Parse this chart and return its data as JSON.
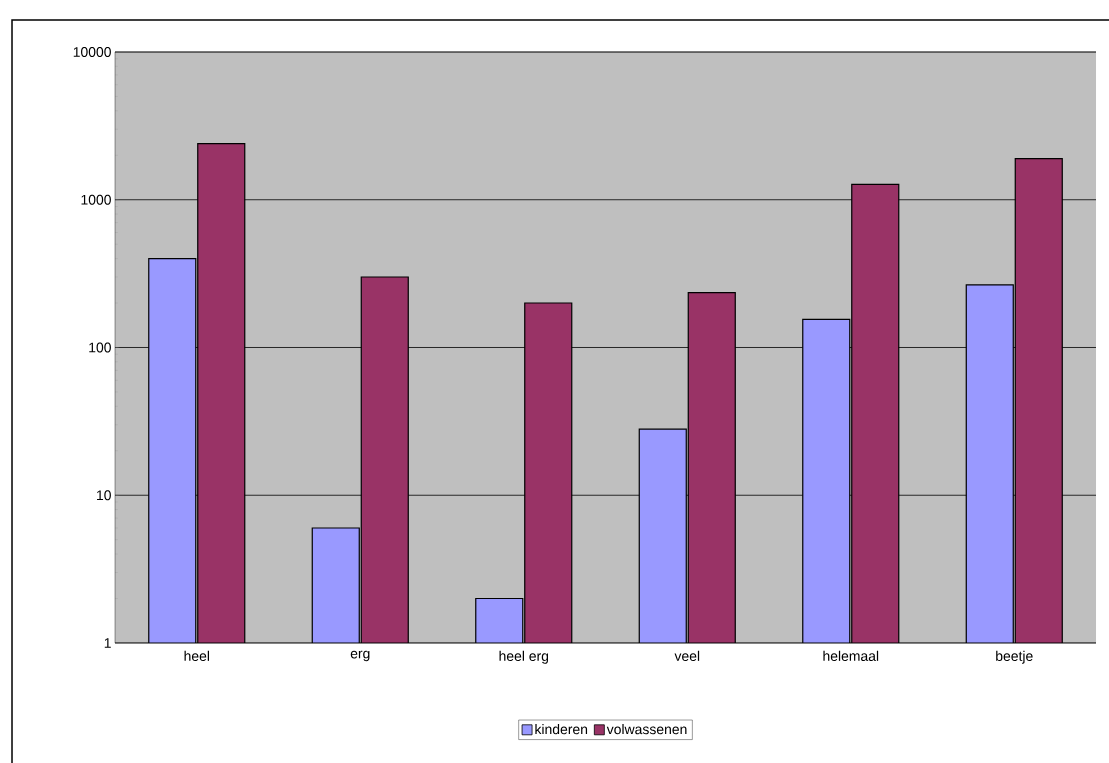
{
  "chart_data": {
    "type": "bar",
    "categories": [
      "heel",
      "erg",
      "heel erg",
      "veel",
      "helemaal",
      "beetje"
    ],
    "series": [
      {
        "name": "kinderen",
        "color": "#9999ff",
        "values": [
          400,
          6,
          2,
          28,
          155,
          265
        ]
      },
      {
        "name": "volwassenen",
        "color": "#993366",
        "values": [
          2400,
          300,
          200,
          235,
          1270,
          1900
        ]
      }
    ],
    "log": "y",
    "ylim": [
      1,
      10000
    ],
    "yticks": [
      1,
      10,
      100,
      1000,
      10000
    ],
    "grid": "y",
    "legend": "bottom"
  }
}
